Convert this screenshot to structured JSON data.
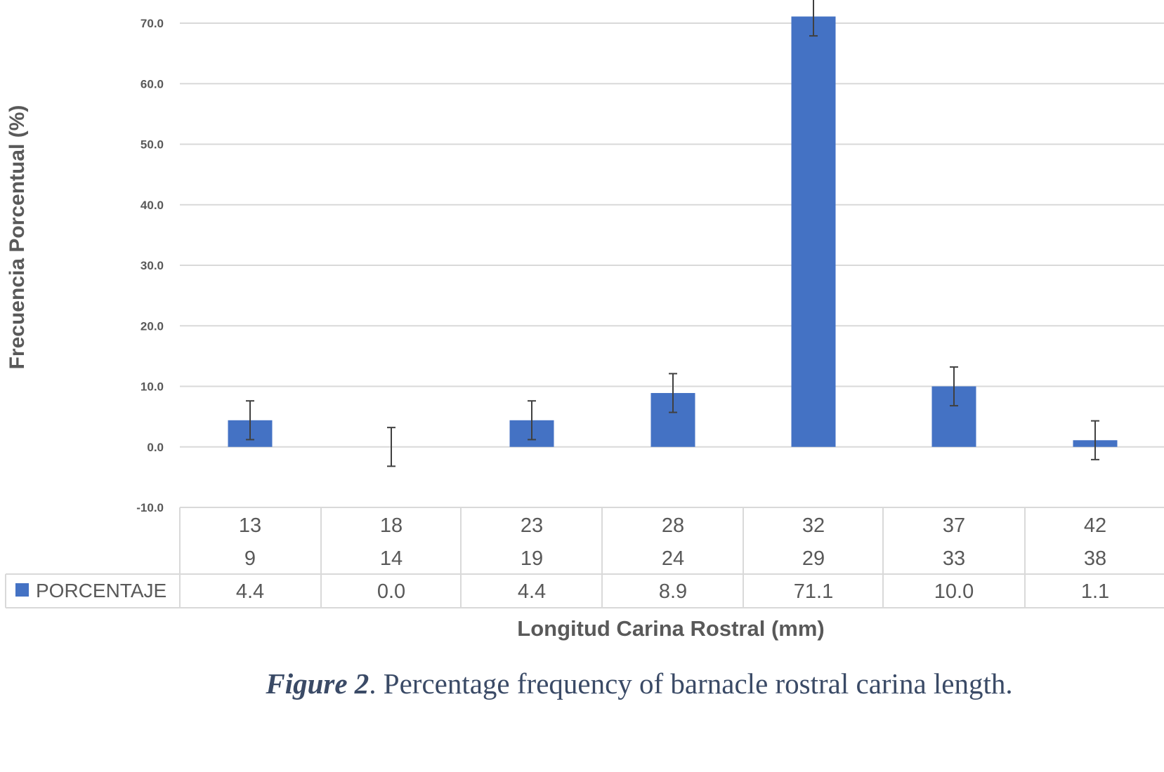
{
  "chart_data": {
    "type": "bar",
    "ylabel": "Frecuencia Porcentual  (%)",
    "xlabel": "Longitud Carina Rostral (mm)",
    "ylim": [
      -10,
      70
    ],
    "yticks": [
      "70.0",
      "60.0",
      "50.0",
      "40.0",
      "30.0",
      "20.0",
      "10.0",
      "0.0",
      "-10.0"
    ],
    "ytick_values": [
      70,
      60,
      50,
      40,
      30,
      20,
      10,
      0,
      -10
    ],
    "grid": true,
    "categories_upper": [
      "13",
      "18",
      "23",
      "28",
      "32",
      "37",
      "42"
    ],
    "categories_lower": [
      "9",
      "14",
      "19",
      "24",
      "29",
      "33",
      "38"
    ],
    "series": [
      {
        "name": "PORCENTAJE",
        "color": "#4472c4",
        "values": [
          4.4,
          0.0,
          4.4,
          8.9,
          71.1,
          10.0,
          1.1
        ],
        "value_labels": [
          "4.4",
          "0.0",
          "4.4",
          "8.9",
          "71.1",
          "10.0",
          "1.1"
        ],
        "error": 3.2
      }
    ],
    "legend": "data-table"
  },
  "caption": {
    "label": "Figure 2",
    "text": ". Percentage frequency of barnacle rostral carina length."
  }
}
